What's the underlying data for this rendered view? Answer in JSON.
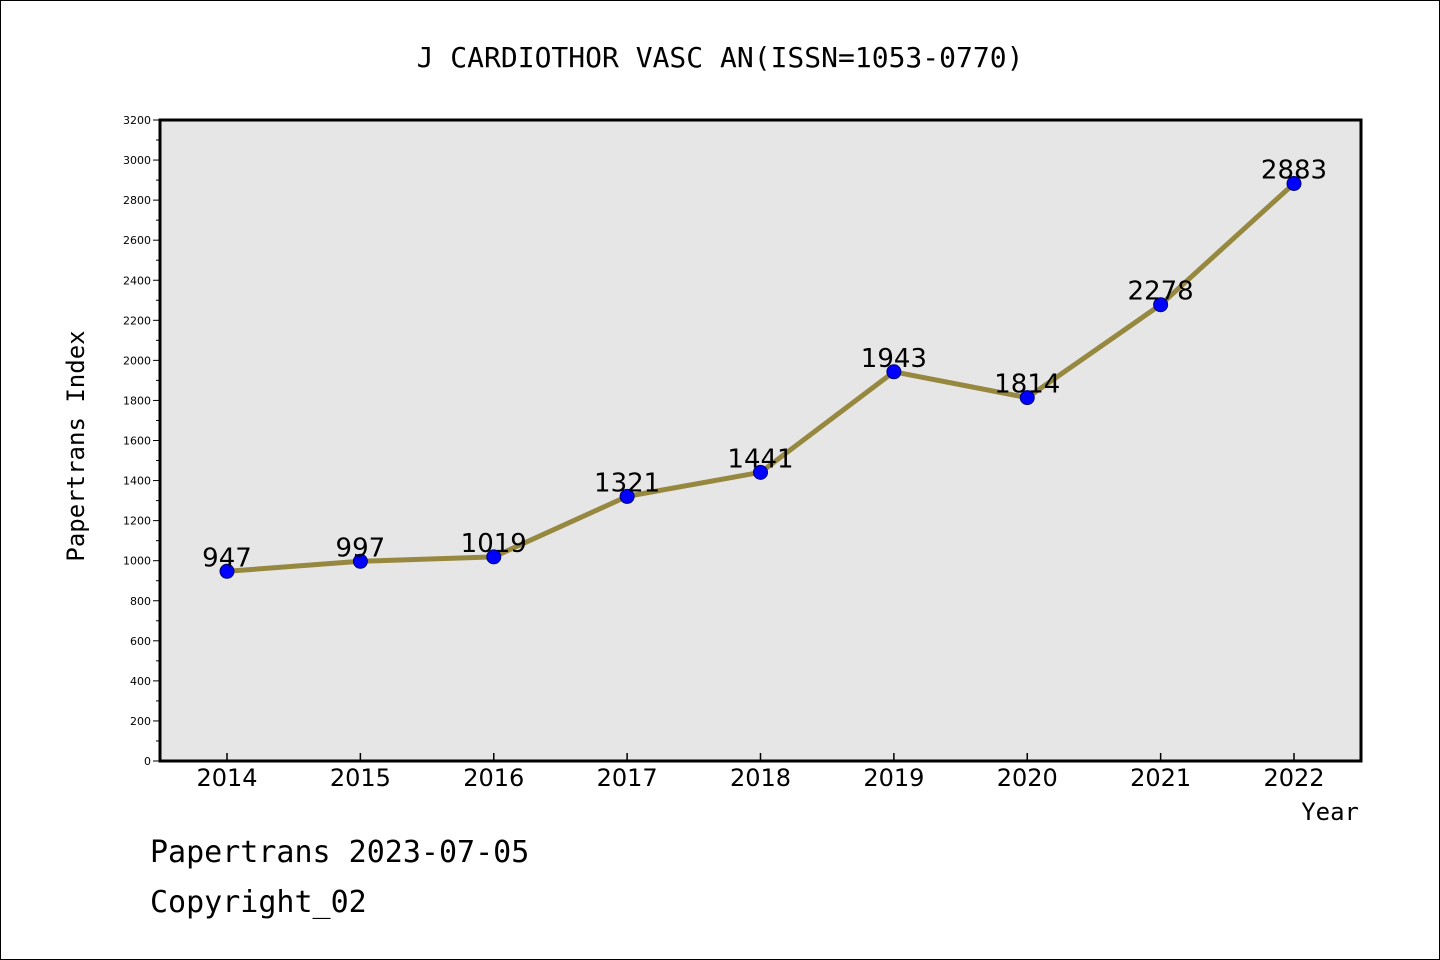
{
  "chart_data": {
    "type": "line",
    "title": "J CARDIOTHOR VASC AN(ISSN=1053-0770)",
    "xlabel": "Year",
    "ylabel": "Papertrans Index",
    "categories": [
      "2014",
      "2015",
      "2016",
      "2017",
      "2018",
      "2019",
      "2020",
      "2021",
      "2022"
    ],
    "series": [
      {
        "values": [
          947,
          997,
          1019,
          1321,
          1441,
          1943,
          1814,
          2278,
          2883
        ]
      }
    ],
    "data_labels": [
      "947",
      "997",
      "1019",
      "1321",
      "1441",
      "1943",
      "1814",
      "2278",
      "2883"
    ],
    "ylim": [
      0,
      3200
    ],
    "yticks": [
      0,
      200,
      400,
      600,
      800,
      1000,
      1200,
      1400,
      1600,
      1800,
      2000,
      2200,
      2400,
      2600,
      2800,
      3000,
      3200
    ],
    "grid": false,
    "colors": {
      "line": "#978840",
      "marker": "#0000ff",
      "plot_background": "#e6e6e6"
    }
  },
  "footer": {
    "date_text": "Papertrans 2023-07-05",
    "copyright_text": "Copyright_02"
  }
}
